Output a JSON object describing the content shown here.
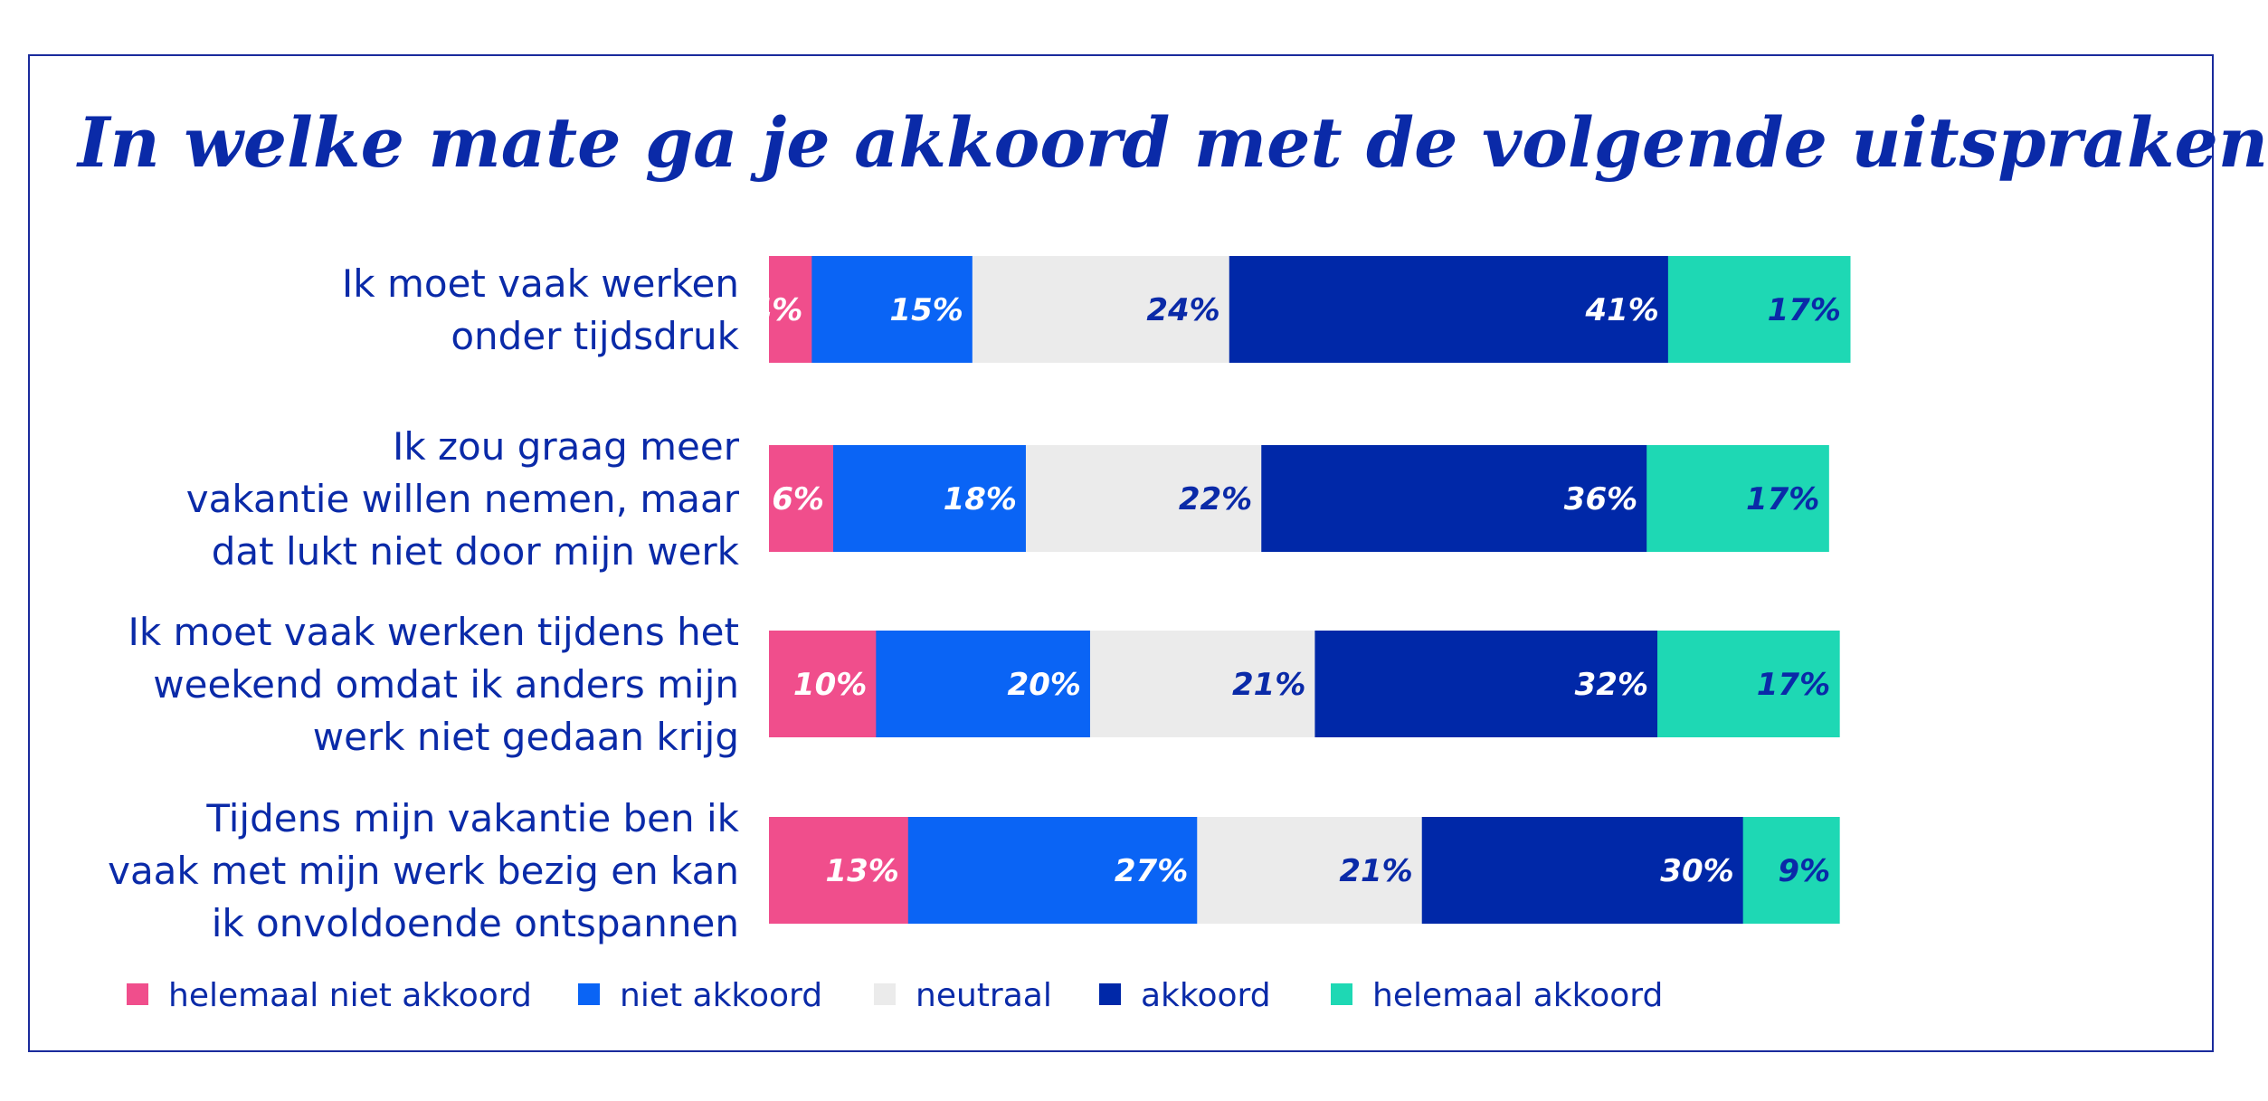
{
  "chart_data": {
    "type": "bar",
    "orientation": "horizontal",
    "stacked": true,
    "title": "In welke mate ga je akkoord met de volgende uitspraken",
    "categories": [
      [
        "Ik moet vaak werken",
        "onder tijdsdruk"
      ],
      [
        "Ik zou graag meer",
        "vakantie willen nemen, maar",
        "dat lukt niet door mijn werk"
      ],
      [
        "Ik moet vaak werken tijdens het",
        "weekend omdat ik anders mijn",
        "werk niet gedaan krijg"
      ],
      [
        "Tijdens mijn vakantie ben ik",
        "vaak met mijn werk bezig en kan",
        "ik onvoldoende ontspannen"
      ]
    ],
    "series": [
      {
        "name": "helemaal niet akkoord",
        "color": "#f04e8c",
        "label_color": "#ffffff",
        "values": [
          4,
          6,
          10,
          13
        ]
      },
      {
        "name": "niet akkoord",
        "color": "#0a64f5",
        "label_color": "#ffffff",
        "values": [
          15,
          18,
          20,
          27
        ]
      },
      {
        "name": "neutraal",
        "color": "#ebebeb",
        "label_color": "#0a2aa8",
        "values": [
          24,
          22,
          21,
          21
        ]
      },
      {
        "name": "akkoord",
        "color": "#0028a8",
        "label_color": "#ffffff",
        "values": [
          41,
          36,
          32,
          30
        ]
      },
      {
        "name": "helemaal akkoord",
        "color": "#1ed8b4",
        "label_color": "#0a2aa8",
        "values": [
          17,
          17,
          17,
          9
        ]
      }
    ],
    "value_suffix": "%",
    "xlim": [
      0,
      101
    ],
    "legend_position": "bottom-left",
    "grid": false
  }
}
